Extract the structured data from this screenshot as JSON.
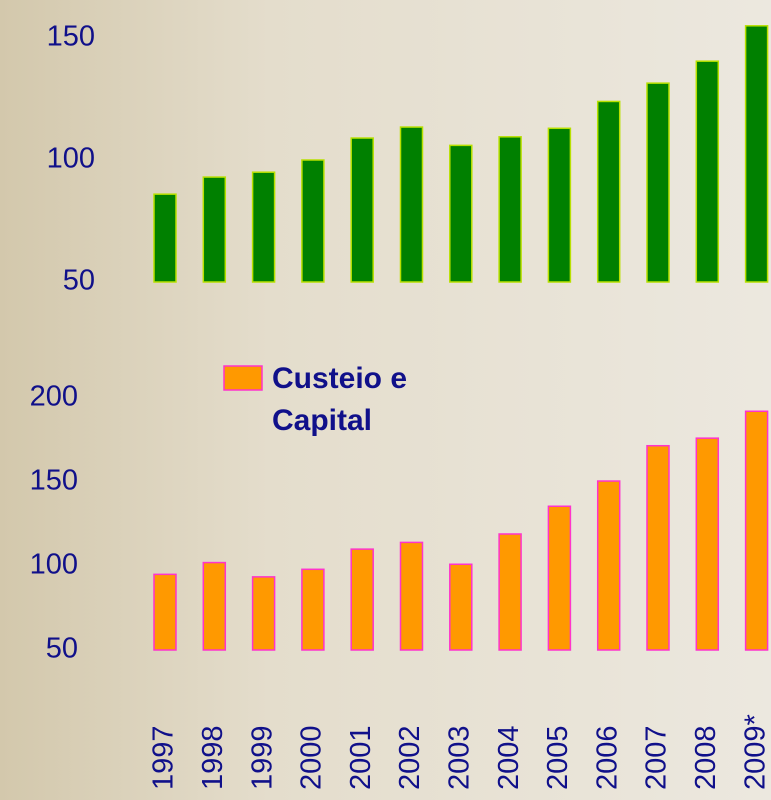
{
  "chart_data": [
    {
      "type": "bar",
      "values": [
        86,
        93,
        95,
        100,
        109,
        113.5,
        106,
        109.5,
        113,
        124,
        131.5,
        140.5,
        155
      ],
      "color": "#008000",
      "edgecolor": "#b8e000",
      "ylim": [
        50,
        160
      ],
      "yticks": [
        50,
        100,
        150
      ],
      "grid": false
    },
    {
      "type": "bar",
      "categories": [
        "1997",
        "1998",
        "1999",
        "2000",
        "2001",
        "2002",
        "2003",
        "2004",
        "2005",
        "2006",
        "2007",
        "2008",
        "2009*"
      ],
      "series": [
        {
          "name": "Custeio e Capital",
          "color": "#ff9900",
          "edgecolor": "#ff33cc",
          "values": [
            95,
            102,
            93.5,
            98,
            110,
            114,
            101,
            119,
            135.5,
            150.5,
            171.5,
            176,
            192
          ]
        }
      ],
      "ylim": [
        50,
        210
      ],
      "yticks": [
        50,
        100,
        150,
        200
      ],
      "grid": false,
      "legend": "upper left"
    }
  ]
}
